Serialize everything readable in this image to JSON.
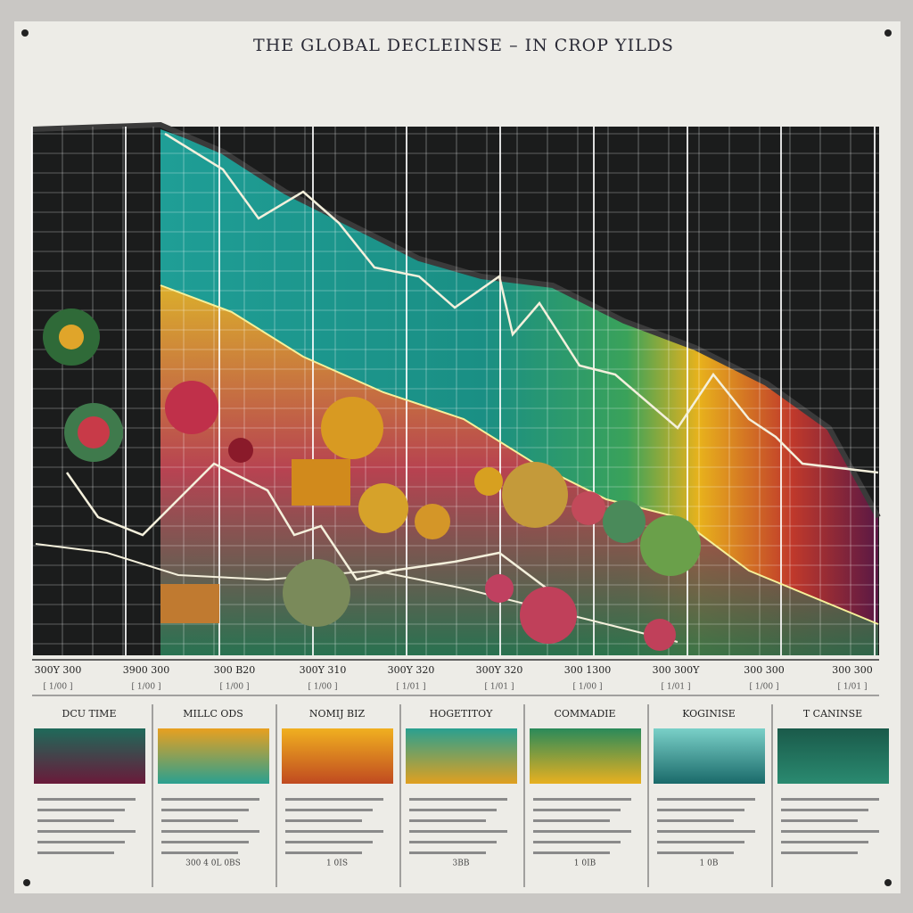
{
  "title": "THE GLOBAL DECLEINSE – IN CROP YILDS",
  "axis_labels": [
    {
      "label": "300Y 300",
      "sub": "[ 1/00 ]"
    },
    {
      "label": "3900 300",
      "sub": "[ 1/00 ]"
    },
    {
      "label": "300 B20",
      "sub": "[ 1/00 ]"
    },
    {
      "label": "300Y 310",
      "sub": "[ 1/00 ]"
    },
    {
      "label": "300Y 320",
      "sub": "[ 1/01 ]"
    },
    {
      "label": "300Y 320",
      "sub": "[ 1/01 ]"
    },
    {
      "label": "300 1300",
      "sub": "[ 1/00 ]"
    },
    {
      "label": "300 300Y",
      "sub": "[ 1/01 ]"
    },
    {
      "label": "300 300",
      "sub": "[ 1/00 ]"
    },
    {
      "label": "300 300",
      "sub": "[ 1/01 ]"
    }
  ],
  "panels": [
    {
      "heading": "DCU TIME"
    },
    {
      "heading": "MILLC ODS",
      "footer": "300 4 0L 0BS"
    },
    {
      "heading": "NOMIJ BIZ",
      "footer": "1 0IS"
    },
    {
      "heading": "HOGETITOY",
      "footer": "3BB"
    },
    {
      "heading": "COMMADIE",
      "footer": "1 0IB"
    },
    {
      "heading": "KOGINISE",
      "footer": "1 0B"
    },
    {
      "heading": "T CANINSE"
    }
  ]
}
